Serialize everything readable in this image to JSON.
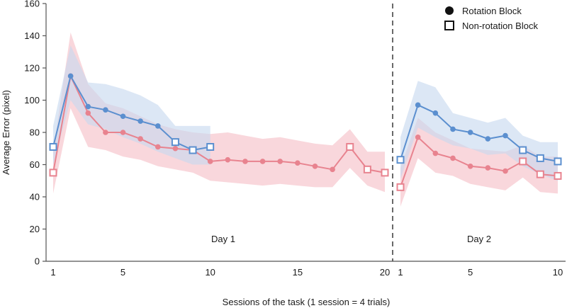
{
  "chart_data": {
    "type": "line",
    "xlabel": "Sessions of the task (1 session = 4 trials)",
    "ylabel": "Average Error (pixel)",
    "ylim": [
      0,
      160
    ],
    "yticks": [
      0,
      20,
      40,
      60,
      80,
      100,
      120,
      140,
      160
    ],
    "legend": {
      "placement": "top-right",
      "rotation_label": "Rotation Block",
      "nonrotation_label": "Non-rotation Block"
    },
    "colors": {
      "blue": "#5b8fcf",
      "red": "#e8838f",
      "blue_band": "#c7d8ef",
      "red_band": "#f6c8cf",
      "divider": "#444444"
    },
    "panels": [
      {
        "label": "Day 1",
        "xlim": [
          1,
          20
        ],
        "xticks": [
          1,
          5,
          10,
          15,
          20
        ],
        "series": [
          {
            "name": "blue",
            "x": [
              1,
              2,
              3,
              4,
              5,
              6,
              7,
              8,
              9,
              10
            ],
            "values": [
              71,
              115,
              96,
              94,
              90,
              87,
              84,
              74,
              69,
              71
            ],
            "markers": [
              "square",
              "circle",
              "circle",
              "circle",
              "circle",
              "circle",
              "circle",
              "square",
              "square",
              "square"
            ],
            "upper": [
              84,
              134,
              111,
              110,
              107,
              103,
              97,
              84,
              84,
              84
            ],
            "lower": [
              60,
              100,
              85,
              82,
              77,
              73,
              68,
              64,
              60,
              60
            ]
          },
          {
            "name": "red",
            "x": [
              1,
              2,
              3,
              4,
              5,
              6,
              7,
              8,
              9,
              10,
              11,
              12,
              13,
              14,
              15,
              16,
              17,
              18,
              19,
              20
            ],
            "values": [
              55,
              115,
              92,
              80,
              80,
              76,
              71,
              70,
              69,
              62,
              63,
              62,
              62,
              62,
              61,
              59,
              57,
              71,
              57,
              55
            ],
            "markers": [
              "square",
              "circle",
              "circle",
              "circle",
              "circle",
              "circle",
              "circle",
              "circle",
              "circle",
              "circle",
              "circle",
              "circle",
              "circle",
              "circle",
              "circle",
              "circle",
              "circle",
              "square",
              "square",
              "square"
            ],
            "upper": [
              68,
              142,
              110,
              98,
              95,
              90,
              85,
              82,
              80,
              79,
              80,
              78,
              76,
              77,
              75,
              73,
              72,
              82,
              68,
              68
            ],
            "lower": [
              42,
              95,
              71,
              69,
              65,
              63,
              59,
              57,
              55,
              50,
              49,
              48,
              47,
              48,
              47,
              46,
              46,
              58,
              47,
              43
            ]
          }
        ]
      },
      {
        "label": "Day 2",
        "xlim": [
          1,
          10
        ],
        "xticks": [
          1,
          5,
          10
        ],
        "series": [
          {
            "name": "blue",
            "x": [
              1,
              2,
              3,
              4,
              5,
              6,
              7,
              8,
              9,
              10
            ],
            "values": [
              63,
              97,
              92,
              82,
              80,
              76,
              78,
              69,
              64,
              62
            ],
            "markers": [
              "square",
              "circle",
              "circle",
              "circle",
              "circle",
              "circle",
              "circle",
              "square",
              "square",
              "square"
            ],
            "upper": [
              77,
              112,
              108,
              92,
              89,
              86,
              89,
              78,
              74,
              74
            ],
            "lower": [
              51,
              83,
              77,
              72,
              70,
              66,
              67,
              59,
              54,
              50
            ]
          },
          {
            "name": "red",
            "x": [
              1,
              2,
              3,
              4,
              5,
              6,
              7,
              8,
              9,
              10
            ],
            "values": [
              46,
              77,
              67,
              64,
              59,
              58,
              56,
              62,
              54,
              53
            ],
            "markers": [
              "square",
              "circle",
              "circle",
              "circle",
              "circle",
              "circle",
              "circle",
              "square",
              "square",
              "square"
            ],
            "upper": [
              58,
              89,
              80,
              75,
              70,
              69,
              68,
              72,
              65,
              65
            ],
            "lower": [
              34,
              64,
              55,
              53,
              48,
              46,
              44,
              52,
              43,
              42
            ]
          }
        ]
      }
    ]
  }
}
